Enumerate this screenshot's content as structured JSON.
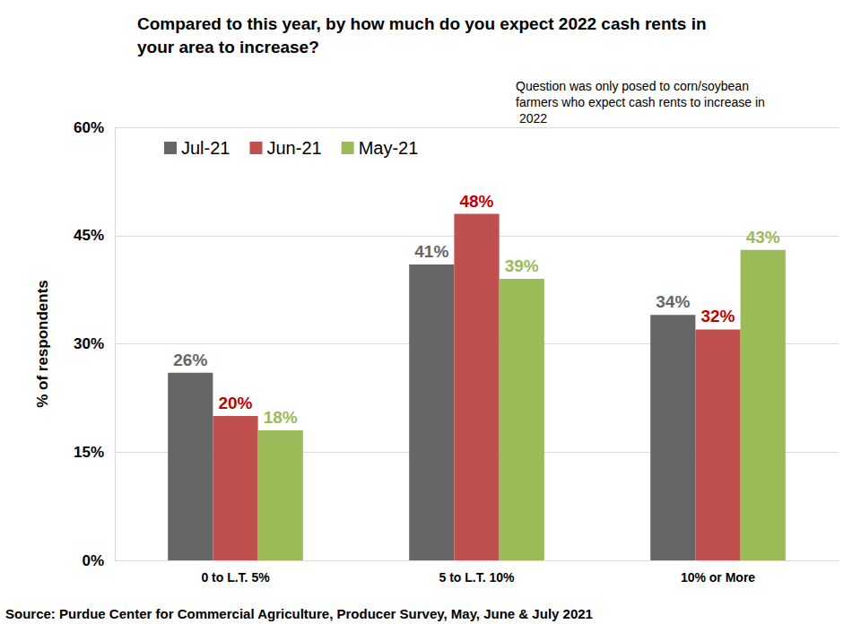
{
  "chart_data": {
    "type": "bar",
    "title": "Compared to this year, by how much do you expect 2022 cash rents in your area to increase?",
    "subtitle": "Question was only posed to corn/soybean farmers who expect cash rents to increase in 2022",
    "annotations": [
      "Source: Purdue Center for Commercial Agriculture, Producer Survey, May, June & July 2021"
    ],
    "y_label": "% of respondents",
    "categories": [
      "0 to L.T. 5%",
      "5 to L.T. 10%",
      "10% or More"
    ],
    "series": [
      {
        "name": "Jul-21",
        "color": "#666666",
        "values": [
          26,
          41,
          34
        ],
        "value_labels": [
          "26%",
          "41%",
          "34%"
        ]
      },
      {
        "name": "Jun-21",
        "color": "#c0504d",
        "values": [
          20,
          48,
          32
        ],
        "value_labels": [
          "20%",
          "48%",
          "32%"
        ]
      },
      {
        "name": "May-21",
        "color": "#9bbb59",
        "values": [
          18,
          39,
          43
        ],
        "value_labels": [
          "18%",
          "39%",
          "43%"
        ]
      }
    ],
    "ylim": [
      0,
      60
    ],
    "yticks": [
      {
        "value": 0,
        "label": "0%"
      },
      {
        "value": 15,
        "label": "15%"
      },
      {
        "value": 30,
        "label": "30%"
      },
      {
        "value": 45,
        "label": "45%"
      },
      {
        "value": 60,
        "label": "60%"
      }
    ],
    "grid": true,
    "legend": "top-left",
    "data_labels": true
  }
}
